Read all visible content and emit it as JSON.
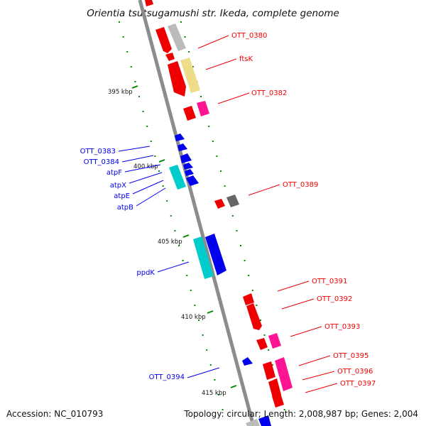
{
  "title": "Orientia tsutsugamushi str. Ikeda, complete genome",
  "footer": {
    "accession": "Accession: NC_010793",
    "summary": "Topology: circular; Length: 2,008,987 bp; Genes: 2,004"
  },
  "scale": {
    "ticks": [
      {
        "label": "395 kbp"
      },
      {
        "label": "400 kbp"
      },
      {
        "label": "405 kbp"
      },
      {
        "label": "410 kbp"
      },
      {
        "label": "415 kbp"
      }
    ]
  },
  "colors": {
    "backbone": "#8c8c8c",
    "red": "#ee0000",
    "blue": "#0000ee",
    "cyan": "#00cccc",
    "pink": "#ff1493",
    "yellow": "#eedd88",
    "lightgrey": "#bbbbbb",
    "darkgrey": "#666666",
    "tick": "#008800"
  },
  "labels": {
    "right": [
      {
        "text": "OTT_0380"
      },
      {
        "text": "ftsK"
      },
      {
        "text": "OTT_0382"
      },
      {
        "text": "OTT_0389"
      },
      {
        "text": "OTT_0391"
      },
      {
        "text": "OTT_0392"
      },
      {
        "text": "OTT_0393"
      },
      {
        "text": "OTT_0395"
      },
      {
        "text": "OTT_0396"
      },
      {
        "text": "OTT_0397"
      }
    ],
    "left": [
      {
        "text": "OTT_0383"
      },
      {
        "text": "OTT_0384"
      },
      {
        "text": "atpF"
      },
      {
        "text": "atpX"
      },
      {
        "text": "atpE"
      },
      {
        "text": "atpB"
      },
      {
        "text": "ppdK"
      },
      {
        "text": "OTT_0394"
      }
    ]
  }
}
